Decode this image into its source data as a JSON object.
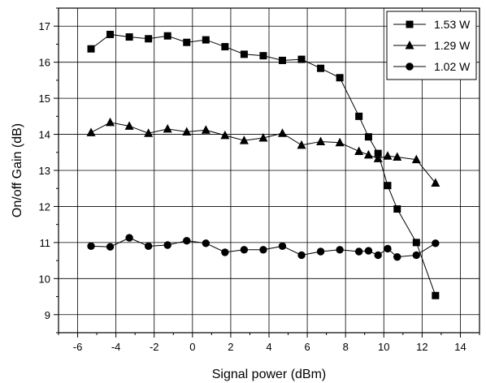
{
  "chart_data": {
    "type": "line",
    "xlabel": "Signal power (dBm)",
    "ylabel": "On/off Gain (dB)",
    "xlim": [
      -7,
      15
    ],
    "ylim": [
      8.5,
      17.5
    ],
    "x_ticks": [
      -6,
      -4,
      -2,
      0,
      2,
      4,
      6,
      8,
      10,
      12,
      14
    ],
    "y_ticks": [
      9,
      10,
      11,
      12,
      13,
      14,
      15,
      16,
      17
    ],
    "grid": true,
    "legend_position": "top-right",
    "series": [
      {
        "name": "1.53 W",
        "marker": "square",
        "x": [
          -5.3,
          -4.3,
          -3.3,
          -2.3,
          -1.3,
          -0.3,
          0.7,
          1.7,
          2.7,
          3.7,
          4.7,
          5.7,
          6.7,
          7.7,
          8.7,
          9.2,
          9.7,
          10.2,
          10.7,
          11.7,
          12.7
        ],
        "y": [
          16.37,
          16.77,
          16.7,
          16.65,
          16.73,
          16.55,
          16.62,
          16.43,
          16.22,
          16.18,
          16.05,
          16.08,
          15.83,
          15.57,
          14.5,
          13.93,
          13.47,
          12.58,
          11.93,
          11.0,
          9.53
        ]
      },
      {
        "name": "1.29 W",
        "marker": "triangle",
        "x": [
          -5.3,
          -4.3,
          -3.3,
          -2.3,
          -1.3,
          -0.3,
          0.7,
          1.7,
          2.7,
          3.7,
          4.7,
          5.7,
          6.7,
          7.7,
          8.7,
          9.2,
          9.7,
          10.2,
          10.7,
          11.7,
          12.7
        ],
        "y": [
          14.05,
          14.33,
          14.23,
          14.03,
          14.15,
          14.07,
          14.12,
          13.97,
          13.83,
          13.9,
          14.03,
          13.7,
          13.8,
          13.77,
          13.53,
          13.43,
          13.33,
          13.4,
          13.37,
          13.3,
          12.65
        ]
      },
      {
        "name": "1.02 W",
        "marker": "circle",
        "x": [
          -5.3,
          -4.3,
          -3.3,
          -2.3,
          -1.3,
          -0.3,
          0.7,
          1.7,
          2.7,
          3.7,
          4.7,
          5.7,
          6.7,
          7.7,
          8.7,
          9.2,
          9.7,
          10.2,
          10.7,
          11.7,
          12.7
        ],
        "y": [
          10.9,
          10.88,
          11.13,
          10.9,
          10.93,
          11.05,
          10.98,
          10.73,
          10.8,
          10.8,
          10.9,
          10.65,
          10.75,
          10.8,
          10.75,
          10.77,
          10.65,
          10.83,
          10.6,
          10.65,
          10.98
        ]
      }
    ]
  }
}
